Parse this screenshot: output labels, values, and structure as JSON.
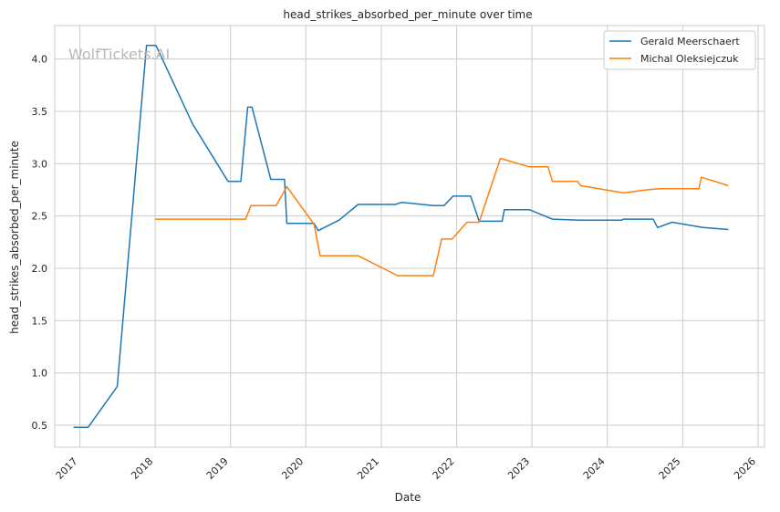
{
  "chart_data": {
    "type": "line",
    "title": "head_strikes_absorbed_per_minute over time",
    "xlabel": "Date",
    "ylabel": "head_strikes_absorbed_per_minute",
    "watermark": "WolfTickets.AI",
    "xlim": [
      "2016-09-01",
      "2026-02-01"
    ],
    "ylim": [
      0.29,
      4.32
    ],
    "grid": true,
    "legend_position": "top-right",
    "x_ticks": [
      "2017",
      "2018",
      "2019",
      "2020",
      "2021",
      "2022",
      "2023",
      "2024",
      "2025",
      "2026"
    ],
    "y_ticks": [
      0.5,
      1.0,
      1.5,
      2.0,
      2.5,
      3.0,
      3.5,
      4.0
    ],
    "y_tick_labels": [
      "0.5",
      "1.0",
      "1.5",
      "2.0",
      "2.5",
      "3.0",
      "3.5",
      "4.0"
    ],
    "series": [
      {
        "name": "Gerald Meerschaert",
        "color": "#1f77b4",
        "points": [
          [
            "2016-12-01",
            0.48
          ],
          [
            "2017-02-10",
            0.48
          ],
          [
            "2017-07-01",
            0.87
          ],
          [
            "2017-11-20",
            4.13
          ],
          [
            "2018-01-05",
            4.13
          ],
          [
            "2018-07-01",
            3.38
          ],
          [
            "2018-12-20",
            2.83
          ],
          [
            "2019-02-20",
            2.83
          ],
          [
            "2019-03-25",
            3.54
          ],
          [
            "2019-04-15",
            3.54
          ],
          [
            "2019-07-15",
            2.85
          ],
          [
            "2019-09-20",
            2.85
          ],
          [
            "2019-10-01",
            2.43
          ],
          [
            "2020-02-10",
            2.43
          ],
          [
            "2020-03-01",
            2.36
          ],
          [
            "2020-06-10",
            2.46
          ],
          [
            "2020-09-10",
            2.61
          ],
          [
            "2021-03-10",
            2.61
          ],
          [
            "2021-04-10",
            2.63
          ],
          [
            "2021-09-10",
            2.6
          ],
          [
            "2021-11-01",
            2.6
          ],
          [
            "2021-12-15",
            2.69
          ],
          [
            "2022-03-10",
            2.69
          ],
          [
            "2022-04-20",
            2.45
          ],
          [
            "2022-08-10",
            2.45
          ],
          [
            "2022-08-20",
            2.56
          ],
          [
            "2022-12-20",
            2.56
          ],
          [
            "2023-04-10",
            2.47
          ],
          [
            "2023-08-20",
            2.46
          ],
          [
            "2024-03-10",
            2.46
          ],
          [
            "2024-03-20",
            2.47
          ],
          [
            "2024-08-10",
            2.47
          ],
          [
            "2024-09-01",
            2.39
          ],
          [
            "2024-11-10",
            2.44
          ],
          [
            "2025-04-10",
            2.39
          ],
          [
            "2025-08-10",
            2.37
          ]
        ]
      },
      {
        "name": "Michal Oleksiejczuk",
        "color": "#ff7f0e",
        "points": [
          [
            "2018-01-01",
            2.47
          ],
          [
            "2019-03-15",
            2.47
          ],
          [
            "2019-04-10",
            2.6
          ],
          [
            "2019-08-10",
            2.6
          ],
          [
            "2019-10-01",
            2.78
          ],
          [
            "2020-02-10",
            2.42
          ],
          [
            "2020-03-10",
            2.12
          ],
          [
            "2020-09-10",
            2.12
          ],
          [
            "2021-03-20",
            1.93
          ],
          [
            "2021-09-10",
            1.93
          ],
          [
            "2021-10-20",
            2.28
          ],
          [
            "2021-12-10",
            2.28
          ],
          [
            "2022-02-20",
            2.44
          ],
          [
            "2022-04-20",
            2.44
          ],
          [
            "2022-08-01",
            3.05
          ],
          [
            "2022-12-20",
            2.97
          ],
          [
            "2023-03-20",
            2.97
          ],
          [
            "2023-04-10",
            2.83
          ],
          [
            "2023-08-10",
            2.83
          ],
          [
            "2023-08-25",
            2.79
          ],
          [
            "2024-03-20",
            2.72
          ],
          [
            "2024-07-10",
            2.75
          ],
          [
            "2024-09-10",
            2.76
          ],
          [
            "2025-03-20",
            2.76
          ],
          [
            "2025-04-01",
            2.87
          ],
          [
            "2025-08-10",
            2.79
          ]
        ]
      }
    ]
  }
}
